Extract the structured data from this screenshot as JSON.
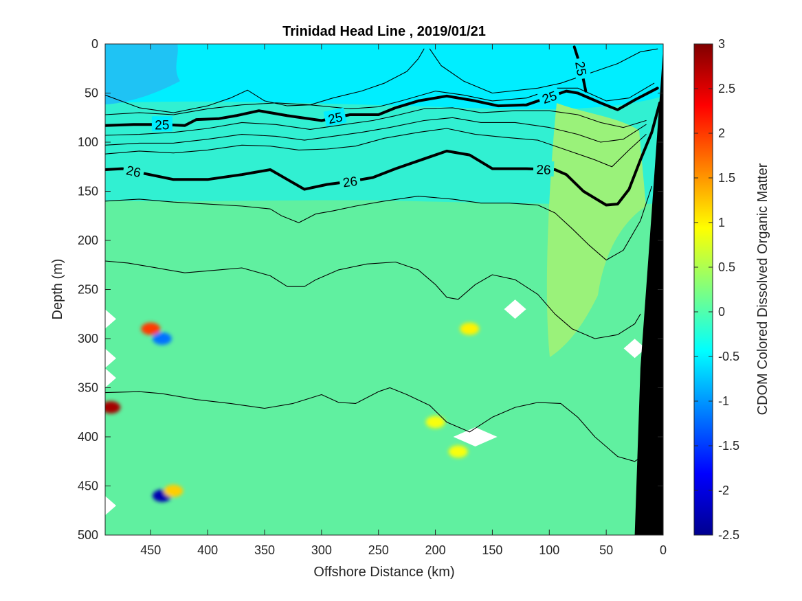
{
  "chart_data": {
    "type": "heatmap",
    "title": "Trinidad Head Line , 2019/01/21",
    "xlabel": "Offshore Distance (km)",
    "ylabel": "Depth (m)",
    "colorbar_label": "CDOM Colored Dissolved Organic Matter",
    "xlim": [
      490,
      0
    ],
    "x_reversed": true,
    "ylim": [
      0,
      500
    ],
    "y_reversed": true,
    "x_ticks": [
      450,
      400,
      350,
      300,
      250,
      200,
      150,
      100,
      50,
      0
    ],
    "y_ticks": [
      0,
      50,
      100,
      150,
      200,
      250,
      300,
      350,
      400,
      450,
      500
    ],
    "colorbar_range": [
      -2.5,
      3
    ],
    "colorbar_ticks": [
      3,
      2.5,
      2,
      1.5,
      1,
      0.5,
      0,
      -0.5,
      -1,
      -1.5,
      -2,
      -2.5
    ],
    "colormap": "jet",
    "background_field_colors": {
      "surface_layer": "#00eeff",
      "upper_left_patch": "#1fc3f4",
      "mid_layer": "#31f0d2",
      "deep_layer": "#60f0a0",
      "nearshore_plume": "#9af27a",
      "bathymetry": "#000000"
    },
    "bathymetry": [
      {
        "x": 0,
        "depth": 500
      },
      {
        "x": 0,
        "depth": 5
      },
      {
        "x": 10,
        "depth": 170
      },
      {
        "x": 20,
        "depth": 330
      },
      {
        "x": 25,
        "depth": 500
      }
    ],
    "density_contours": [
      {
        "level": 25,
        "bold": true,
        "label": "25",
        "points": [
          [
            490,
            83
          ],
          [
            465,
            82
          ],
          [
            440,
            82
          ],
          [
            420,
            83
          ],
          [
            410,
            77
          ],
          [
            390,
            76
          ],
          [
            375,
            73
          ],
          [
            355,
            68
          ],
          [
            330,
            73
          ],
          [
            300,
            78
          ],
          [
            275,
            72
          ],
          [
            250,
            72
          ],
          [
            235,
            65
          ],
          [
            215,
            58
          ],
          [
            190,
            53
          ],
          [
            165,
            58
          ],
          [
            145,
            63
          ],
          [
            120,
            62
          ],
          [
            95,
            52
          ],
          [
            85,
            48
          ],
          [
            75,
            50
          ],
          [
            55,
            60
          ],
          [
            40,
            67
          ],
          [
            25,
            57
          ],
          [
            5,
            45
          ]
        ]
      },
      {
        "level": 25,
        "bold": true,
        "label": "25",
        "points": [
          [
            78,
            3
          ],
          [
            72,
            25
          ],
          [
            68,
            48
          ]
        ]
      },
      {
        "level": 26,
        "bold": true,
        "label": "26",
        "points": [
          [
            490,
            128
          ],
          [
            475,
            127
          ],
          [
            455,
            132
          ],
          [
            430,
            138
          ],
          [
            400,
            138
          ],
          [
            370,
            133
          ],
          [
            345,
            128
          ],
          [
            330,
            138
          ],
          [
            315,
            148
          ],
          [
            295,
            143
          ],
          [
            275,
            140
          ],
          [
            255,
            136
          ],
          [
            235,
            127
          ],
          [
            210,
            117
          ],
          [
            190,
            109
          ],
          [
            170,
            113
          ],
          [
            150,
            127
          ],
          [
            120,
            127
          ],
          [
            95,
            128
          ],
          [
            85,
            133
          ],
          [
            70,
            150
          ],
          [
            50,
            164
          ],
          [
            40,
            163
          ],
          [
            30,
            148
          ],
          [
            20,
            118
          ],
          [
            10,
            90
          ],
          [
            3,
            60
          ]
        ]
      },
      {
        "level": null,
        "bold": false,
        "points": [
          [
            490,
            52
          ],
          [
            460,
            65
          ],
          [
            430,
            70
          ],
          [
            400,
            63
          ],
          [
            380,
            55
          ],
          [
            365,
            47
          ],
          [
            350,
            58
          ],
          [
            330,
            63
          ],
          [
            310,
            62
          ],
          [
            290,
            55
          ],
          [
            265,
            48
          ],
          [
            245,
            40
          ],
          [
            225,
            28
          ],
          [
            215,
            15
          ],
          [
            210,
            5
          ]
        ]
      },
      {
        "level": null,
        "bold": false,
        "points": [
          [
            205,
            5
          ],
          [
            195,
            22
          ],
          [
            175,
            38
          ],
          [
            150,
            50
          ],
          [
            110,
            45
          ],
          [
            90,
            40
          ],
          [
            60,
            28
          ],
          [
            40,
            20
          ],
          [
            20,
            8
          ],
          [
            5,
            5
          ]
        ]
      },
      {
        "level": null,
        "bold": false,
        "points": [
          [
            490,
            72
          ],
          [
            460,
            70
          ],
          [
            430,
            72
          ],
          [
            400,
            66
          ],
          [
            370,
            62
          ],
          [
            340,
            60
          ],
          [
            310,
            62
          ],
          [
            275,
            66
          ],
          [
            250,
            64
          ],
          [
            230,
            58
          ],
          [
            200,
            48
          ],
          [
            175,
            52
          ],
          [
            150,
            58
          ],
          [
            120,
            55
          ],
          [
            95,
            45
          ],
          [
            75,
            45
          ],
          [
            50,
            58
          ],
          [
            30,
            55
          ],
          [
            8,
            40
          ]
        ]
      },
      {
        "level": null,
        "bold": false,
        "points": [
          [
            490,
            93
          ],
          [
            460,
            92
          ],
          [
            430,
            90
          ],
          [
            400,
            86
          ],
          [
            370,
            80
          ],
          [
            340,
            82
          ],
          [
            310,
            87
          ],
          [
            280,
            82
          ],
          [
            255,
            78
          ],
          [
            235,
            73
          ],
          [
            210,
            66
          ],
          [
            185,
            65
          ],
          [
            160,
            70
          ],
          [
            130,
            68
          ],
          [
            100,
            68
          ],
          [
            75,
            72
          ],
          [
            55,
            80
          ],
          [
            35,
            85
          ],
          [
            15,
            78
          ]
        ]
      },
      {
        "level": null,
        "bold": false,
        "points": [
          [
            490,
            103
          ],
          [
            460,
            101
          ],
          [
            430,
            101
          ],
          [
            400,
            97
          ],
          [
            370,
            92
          ],
          [
            340,
            94
          ],
          [
            315,
            98
          ],
          [
            290,
            94
          ],
          [
            265,
            90
          ],
          [
            240,
            85
          ],
          [
            210,
            78
          ],
          [
            185,
            75
          ],
          [
            160,
            80
          ],
          [
            130,
            80
          ],
          [
            100,
            85
          ],
          [
            75,
            92
          ],
          [
            55,
            100
          ],
          [
            35,
            97
          ],
          [
            15,
            82
          ]
        ]
      },
      {
        "level": null,
        "bold": false,
        "points": [
          [
            490,
            112
          ],
          [
            460,
            109
          ],
          [
            430,
            111
          ],
          [
            400,
            108
          ],
          [
            370,
            103
          ],
          [
            345,
            104
          ],
          [
            320,
            108
          ],
          [
            295,
            107
          ],
          [
            270,
            104
          ],
          [
            245,
            96
          ],
          [
            215,
            90
          ],
          [
            190,
            86
          ],
          [
            165,
            92
          ],
          [
            140,
            95
          ],
          [
            110,
            98
          ],
          [
            85,
            108
          ],
          [
            60,
            118
          ],
          [
            45,
            125
          ],
          [
            30,
            108
          ],
          [
            15,
            92
          ]
        ]
      },
      {
        "level": null,
        "bold": false,
        "points": [
          [
            490,
            160
          ],
          [
            460,
            158
          ],
          [
            430,
            161
          ],
          [
            400,
            163
          ],
          [
            370,
            165
          ],
          [
            345,
            168
          ],
          [
            335,
            175
          ],
          [
            320,
            182
          ],
          [
            305,
            173
          ],
          [
            290,
            170
          ],
          [
            270,
            165
          ],
          [
            245,
            160
          ],
          [
            215,
            155
          ],
          [
            185,
            158
          ],
          [
            160,
            162
          ],
          [
            135,
            162
          ],
          [
            110,
            164
          ],
          [
            95,
            172
          ],
          [
            80,
            188
          ],
          [
            65,
            205
          ],
          [
            50,
            220
          ],
          [
            35,
            210
          ],
          [
            20,
            180
          ],
          [
            10,
            145
          ]
        ]
      },
      {
        "level": null,
        "bold": false,
        "points": [
          [
            490,
            221
          ],
          [
            470,
            223
          ],
          [
            450,
            227
          ],
          [
            420,
            233
          ],
          [
            390,
            230
          ],
          [
            370,
            228
          ],
          [
            345,
            236
          ],
          [
            330,
            247
          ],
          [
            315,
            247
          ],
          [
            305,
            240
          ],
          [
            285,
            230
          ],
          [
            260,
            224
          ],
          [
            235,
            222
          ],
          [
            215,
            230
          ],
          [
            200,
            245
          ],
          [
            190,
            258
          ],
          [
            180,
            260
          ],
          [
            165,
            245
          ],
          [
            150,
            235
          ],
          [
            130,
            240
          ],
          [
            110,
            255
          ],
          [
            95,
            275
          ],
          [
            80,
            290
          ],
          [
            60,
            300
          ],
          [
            40,
            296
          ],
          [
            25,
            285
          ],
          [
            20,
            275
          ]
        ]
      },
      {
        "level": null,
        "bold": false,
        "points": [
          [
            490,
            355
          ],
          [
            460,
            354
          ],
          [
            440,
            356
          ],
          [
            410,
            362
          ],
          [
            380,
            366
          ],
          [
            350,
            371
          ],
          [
            325,
            366
          ],
          [
            300,
            357
          ],
          [
            285,
            365
          ],
          [
            270,
            366
          ],
          [
            250,
            354
          ],
          [
            240,
            350
          ],
          [
            225,
            357
          ],
          [
            205,
            368
          ],
          [
            190,
            385
          ],
          [
            170,
            395
          ],
          [
            150,
            380
          ],
          [
            130,
            370
          ],
          [
            110,
            365
          ],
          [
            90,
            366
          ],
          [
            75,
            380
          ],
          [
            60,
            400
          ],
          [
            40,
            420
          ],
          [
            25,
            425
          ],
          [
            15,
            417
          ]
        ]
      }
    ],
    "missing_data_points": [
      {
        "x": 490,
        "depth": 280
      },
      {
        "x": 490,
        "depth": 320
      },
      {
        "x": 490,
        "depth": 340
      },
      {
        "x": 490,
        "depth": 470
      },
      {
        "x": 130,
        "depth": 270
      },
      {
        "x": 165,
        "depth": 400
      },
      {
        "x": 25,
        "depth": 310
      }
    ],
    "anomalies": [
      {
        "x": 485,
        "depth": 370,
        "value": 2.8
      },
      {
        "x": 450,
        "depth": 290,
        "value": 2.0
      },
      {
        "x": 440,
        "depth": 300,
        "value": -1.2
      },
      {
        "x": 440,
        "depth": 460,
        "value": -2.3
      },
      {
        "x": 430,
        "depth": 455,
        "value": 1.2
      },
      {
        "x": 170,
        "depth": 290,
        "value": 1.0
      },
      {
        "x": 180,
        "depth": 415,
        "value": 0.9
      },
      {
        "x": 200,
        "depth": 385,
        "value": 0.9
      }
    ]
  }
}
